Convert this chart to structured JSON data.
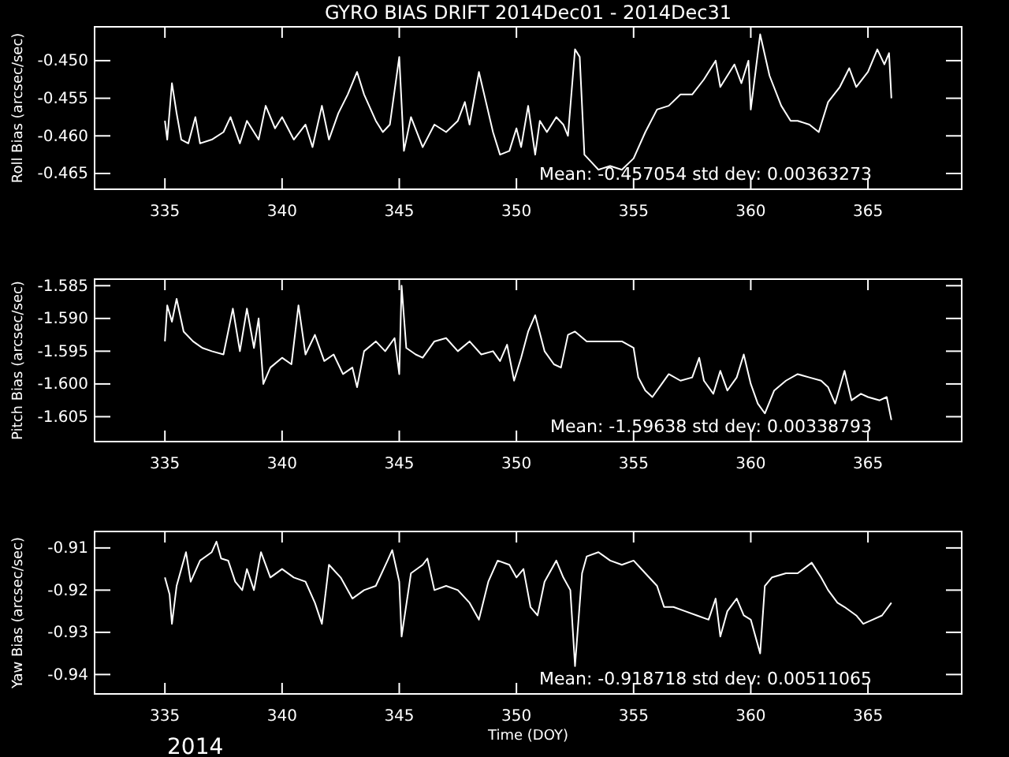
{
  "chart_data": [
    {
      "type": "line",
      "title": "GYRO BIAS DRIFT 2014Dec01 - 2014Dec31",
      "ylabel": "Roll Bias (arcsec/sec)",
      "annotations": [
        "Mean: -0.457054 std dev: 0.00363273"
      ],
      "xlim": [
        332,
        369
      ],
      "xticks": [
        335,
        340,
        345,
        350,
        355,
        360,
        365
      ],
      "ylim": [
        -0.4671,
        -0.4455
      ],
      "yticks": [
        {
          "value": -0.45,
          "label": "-0.450"
        },
        {
          "value": -0.455,
          "label": "-0.455"
        },
        {
          "value": -0.46,
          "label": "-0.460"
        },
        {
          "value": -0.465,
          "label": "-0.465"
        }
      ],
      "x": [
        335.0,
        335.1,
        335.3,
        335.5,
        335.7,
        336.0,
        336.3,
        336.5,
        337.0,
        337.5,
        337.8,
        338.2,
        338.5,
        339.0,
        339.3,
        339.7,
        340.0,
        340.5,
        341.0,
        341.3,
        341.7,
        342.0,
        342.4,
        342.8,
        343.2,
        343.5,
        344.0,
        344.3,
        344.6,
        345.0,
        345.2,
        345.5,
        346.0,
        346.5,
        347.0,
        347.5,
        347.8,
        348.0,
        348.4,
        348.7,
        349.0,
        349.3,
        349.7,
        350.0,
        350.2,
        350.5,
        350.8,
        351.0,
        351.3,
        351.7,
        352.0,
        352.2,
        352.5,
        352.7,
        352.9,
        353.2,
        353.5,
        354.0,
        354.5,
        355.0,
        355.5,
        356.0,
        356.5,
        357.0,
        357.5,
        358.0,
        358.5,
        358.7,
        359.0,
        359.3,
        359.6,
        359.9,
        360.0,
        360.4,
        360.8,
        361.3,
        361.7,
        362.0,
        362.5,
        362.9,
        363.3,
        363.8,
        364.2,
        364.5,
        365.0,
        365.4,
        365.7,
        365.9,
        366.0
      ],
      "series": [
        {
          "color": "#ffffff",
          "values": [
            -0.458,
            -0.4605,
            -0.453,
            -0.457,
            -0.4605,
            -0.461,
            -0.4575,
            -0.461,
            -0.4605,
            -0.4595,
            -0.4575,
            -0.461,
            -0.458,
            -0.4605,
            -0.456,
            -0.459,
            -0.4575,
            -0.4605,
            -0.4585,
            -0.4615,
            -0.456,
            -0.4605,
            -0.457,
            -0.4545,
            -0.4515,
            -0.4545,
            -0.458,
            -0.4595,
            -0.4585,
            -0.4495,
            -0.462,
            -0.4575,
            -0.4615,
            -0.4585,
            -0.4595,
            -0.458,
            -0.4555,
            -0.4585,
            -0.4515,
            -0.4555,
            -0.4595,
            -0.4625,
            -0.462,
            -0.459,
            -0.4615,
            -0.456,
            -0.4625,
            -0.458,
            -0.4595,
            -0.4575,
            -0.4585,
            -0.46,
            -0.4485,
            -0.4495,
            -0.4625,
            -0.4635,
            -0.4645,
            -0.464,
            -0.4645,
            -0.463,
            -0.4595,
            -0.4565,
            -0.456,
            -0.4545,
            -0.4545,
            -0.4525,
            -0.45,
            -0.4535,
            -0.452,
            -0.4505,
            -0.453,
            -0.45,
            -0.4565,
            -0.4465,
            -0.452,
            -0.456,
            -0.458,
            -0.458,
            -0.4585,
            -0.4595,
            -0.4555,
            -0.4535,
            -0.451,
            -0.4535,
            -0.4515,
            -0.4485,
            -0.4505,
            -0.449,
            -0.455
          ]
        }
      ]
    },
    {
      "type": "line",
      "ylabel": "Pitch Bias (arcsec/sec)",
      "annotations": [
        "Mean: -1.59638 std dev: 0.00338793"
      ],
      "xlim": [
        332,
        369
      ],
      "xticks": [
        335,
        340,
        345,
        350,
        355,
        360,
        365
      ],
      "ylim": [
        -1.6088,
        -1.584
      ],
      "yticks": [
        {
          "value": -1.585,
          "label": "-1.585"
        },
        {
          "value": -1.59,
          "label": "-1.590"
        },
        {
          "value": -1.595,
          "label": "-1.595"
        },
        {
          "value": -1.6,
          "label": "-1.600"
        },
        {
          "value": -1.605,
          "label": "-1.605"
        }
      ],
      "x": [
        335.0,
        335.1,
        335.3,
        335.5,
        335.8,
        336.2,
        336.6,
        337.0,
        337.5,
        337.9,
        338.2,
        338.5,
        338.8,
        339.0,
        339.2,
        339.5,
        340.0,
        340.4,
        340.7,
        341.0,
        341.4,
        341.8,
        342.2,
        342.6,
        343.0,
        343.2,
        343.5,
        344.0,
        344.4,
        344.8,
        345.0,
        345.1,
        345.3,
        345.7,
        346.0,
        346.5,
        347.0,
        347.5,
        348.0,
        348.5,
        349.0,
        349.3,
        349.6,
        349.9,
        350.2,
        350.5,
        350.8,
        351.2,
        351.6,
        351.9,
        352.2,
        352.5,
        353.0,
        353.5,
        354.0,
        354.5,
        355.0,
        355.2,
        355.5,
        355.8,
        356.2,
        356.5,
        357.0,
        357.5,
        357.8,
        358.0,
        358.4,
        358.7,
        359.0,
        359.4,
        359.7,
        360.0,
        360.3,
        360.6,
        361.0,
        361.5,
        362.0,
        362.5,
        363.0,
        363.3,
        363.6,
        364.0,
        364.3,
        364.7,
        365.0,
        365.5,
        365.8,
        366.0
      ],
      "series": [
        {
          "color": "#ffffff",
          "values": [
            -1.5935,
            -1.588,
            -1.5905,
            -1.587,
            -1.592,
            -1.5935,
            -1.5945,
            -1.595,
            -1.5955,
            -1.5885,
            -1.595,
            -1.5885,
            -1.5945,
            -1.59,
            -1.6,
            -1.5975,
            -1.596,
            -1.597,
            -1.588,
            -1.5955,
            -1.5925,
            -1.5965,
            -1.5955,
            -1.5985,
            -1.5975,
            -1.6005,
            -1.595,
            -1.5935,
            -1.595,
            -1.593,
            -1.5985,
            -1.585,
            -1.5945,
            -1.5955,
            -1.596,
            -1.5935,
            -1.593,
            -1.595,
            -1.5935,
            -1.5955,
            -1.595,
            -1.5965,
            -1.594,
            -1.5995,
            -1.596,
            -1.592,
            -1.5895,
            -1.595,
            -1.597,
            -1.5975,
            -1.5925,
            -1.592,
            -1.5935,
            -1.5935,
            -1.5935,
            -1.5935,
            -1.5945,
            -1.599,
            -1.601,
            -1.602,
            -1.6,
            -1.5985,
            -1.5995,
            -1.599,
            -1.596,
            -1.5995,
            -1.6015,
            -1.598,
            -1.601,
            -1.599,
            -1.5955,
            -1.6,
            -1.603,
            -1.6045,
            -1.601,
            -1.5995,
            -1.5985,
            -1.599,
            -1.5995,
            -1.6005,
            -1.603,
            -1.598,
            -1.6025,
            -1.6015,
            -1.602,
            -1.6025,
            -1.602,
            -1.6055
          ]
        }
      ]
    },
    {
      "type": "line",
      "xlabel": "Time (DOY)",
      "ylabel": "Yaw Bias (arcsec/sec)",
      "annotations": [
        "Mean: -0.918718 std dev: 0.00511065",
        "2014"
      ],
      "xlim": [
        332,
        369
      ],
      "xticks": [
        335,
        340,
        345,
        350,
        355,
        360,
        365
      ],
      "ylim": [
        -0.9446,
        -0.9061
      ],
      "yticks": [
        {
          "value": -0.91,
          "label": "-0.91"
        },
        {
          "value": -0.92,
          "label": "-0.92"
        },
        {
          "value": -0.93,
          "label": "-0.93"
        },
        {
          "value": -0.94,
          "label": "-0.94"
        }
      ],
      "x": [
        335.0,
        335.2,
        335.3,
        335.5,
        335.7,
        335.9,
        336.1,
        336.5,
        337.0,
        337.2,
        337.4,
        337.7,
        338.0,
        338.3,
        338.5,
        338.8,
        339.1,
        339.5,
        340.0,
        340.5,
        341.0,
        341.4,
        341.7,
        342.0,
        342.5,
        343.0,
        343.5,
        344.0,
        344.5,
        344.7,
        345.0,
        345.1,
        345.5,
        346.0,
        346.2,
        346.5,
        347.0,
        347.5,
        348.0,
        348.4,
        348.8,
        349.2,
        349.7,
        350.0,
        350.3,
        350.6,
        350.9,
        351.2,
        351.7,
        352.0,
        352.3,
        352.5,
        352.8,
        353.0,
        353.5,
        354.0,
        354.5,
        355.0,
        355.5,
        356.0,
        356.3,
        356.7,
        357.2,
        357.7,
        358.2,
        358.5,
        358.7,
        359.0,
        359.4,
        359.7,
        360.0,
        360.4,
        360.6,
        360.9,
        361.5,
        362.0,
        362.6,
        363.0,
        363.3,
        363.7,
        364.0,
        364.5,
        364.8,
        365.2,
        365.6,
        366.0
      ],
      "series": [
        {
          "color": "#ffffff",
          "values": [
            -0.917,
            -0.921,
            -0.928,
            -0.919,
            -0.915,
            -0.911,
            -0.918,
            -0.913,
            -0.911,
            -0.9085,
            -0.9125,
            -0.913,
            -0.918,
            -0.92,
            -0.915,
            -0.92,
            -0.911,
            -0.917,
            -0.915,
            -0.917,
            -0.918,
            -0.923,
            -0.928,
            -0.914,
            -0.917,
            -0.922,
            -0.92,
            -0.919,
            -0.913,
            -0.9105,
            -0.918,
            -0.931,
            -0.916,
            -0.914,
            -0.9125,
            -0.92,
            -0.919,
            -0.92,
            -0.923,
            -0.927,
            -0.918,
            -0.913,
            -0.914,
            -0.917,
            -0.915,
            -0.924,
            -0.926,
            -0.918,
            -0.913,
            -0.917,
            -0.92,
            -0.938,
            -0.916,
            -0.912,
            -0.911,
            -0.913,
            -0.914,
            -0.913,
            -0.916,
            -0.919,
            -0.924,
            -0.924,
            -0.925,
            -0.926,
            -0.927,
            -0.922,
            -0.931,
            -0.925,
            -0.922,
            -0.926,
            -0.927,
            -0.935,
            -0.919,
            -0.917,
            -0.916,
            -0.916,
            -0.9135,
            -0.917,
            -0.92,
            -0.923,
            -0.924,
            -0.926,
            -0.928,
            -0.927,
            -0.926,
            -0.923
          ]
        }
      ]
    }
  ]
}
